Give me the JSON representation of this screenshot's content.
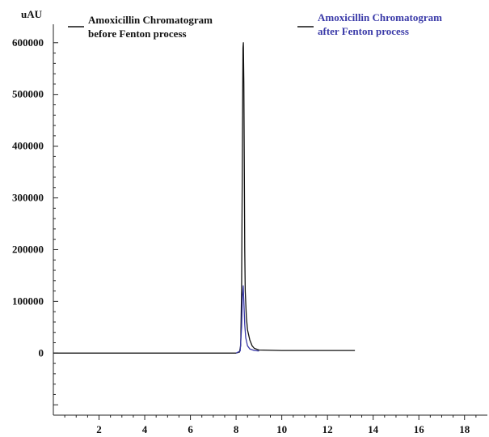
{
  "chart_data": {
    "type": "line",
    "title": "",
    "xlabel": "",
    "ylabel": "uAU",
    "xlim": [
      0,
      19
    ],
    "ylim": [
      -120000,
      620000
    ],
    "x_ticks": [
      2,
      4,
      6,
      8,
      10,
      12,
      14,
      16,
      18
    ],
    "y_ticks": [
      0,
      100000,
      200000,
      300000,
      400000,
      500000,
      600000
    ],
    "grid": false,
    "legend_position": "top",
    "series": [
      {
        "name_lines": [
          "Amoxicillin Chromatogram",
          "before Fenton process"
        ],
        "color": "#111111",
        "x": [
          0,
          8.0,
          8.15,
          8.2,
          8.24,
          8.28,
          8.3,
          8.32,
          8.34,
          8.36,
          8.38,
          8.4,
          8.45,
          8.5,
          8.6,
          8.7,
          8.8,
          9.0,
          10.0,
          13.2
        ],
        "y": [
          0,
          0,
          2000,
          15000,
          120000,
          420000,
          590000,
          600000,
          520000,
          350000,
          200000,
          120000,
          70000,
          45000,
          25000,
          14000,
          9000,
          6000,
          5000,
          5000
        ]
      },
      {
        "name_lines": [
          "Amoxicillin Chromatogram",
          "after Fenton process"
        ],
        "color": "#3a3aa8",
        "x": [
          8.0,
          8.18,
          8.24,
          8.28,
          8.31,
          8.34,
          8.38,
          8.42,
          8.5,
          8.6,
          8.8,
          9.0
        ],
        "y": [
          0,
          4000,
          50000,
          110000,
          130000,
          100000,
          55000,
          30000,
          14000,
          8000,
          5000,
          4000
        ]
      }
    ]
  }
}
